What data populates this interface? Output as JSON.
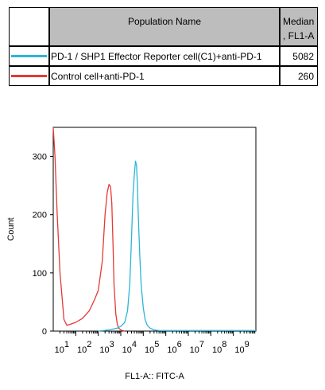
{
  "legend": {
    "header_population": "Population Name",
    "header_median_line1": "Median",
    "header_median_line2": ", FL1-A",
    "rows": [
      {
        "name": "PD-1 / SHP1 Effector Reporter cell(C1)+anti-PD-1",
        "median": "5082",
        "color": "#29b6d8"
      },
      {
        "name": "Control cell+anti-PD-1",
        "median": "260",
        "color": "#e53935"
      }
    ]
  },
  "chart_data": {
    "type": "line",
    "title": "",
    "xlabel": "FL1-A:: FITC-A",
    "ylabel": "Count",
    "xscale": "log",
    "xlim": [
      1,
      1000000000
    ],
    "ylim": [
      0,
      350
    ],
    "yticks": [
      0,
      100,
      200,
      300
    ],
    "xtick_labels": [
      "10",
      "10",
      "10",
      "10",
      "10",
      "10",
      "10",
      "10",
      "10"
    ],
    "xtick_exponents": [
      "1",
      "2",
      "3",
      "4",
      "5",
      "6",
      "7",
      "8",
      "9"
    ],
    "grid": false,
    "series": [
      {
        "name": "Control cell+anti-PD-1",
        "color": "#e53935",
        "x": [
          1,
          1.2,
          1.5,
          2,
          3,
          4,
          6,
          10,
          20,
          40,
          70,
          100,
          150,
          200,
          250,
          300,
          350,
          400,
          450,
          500,
          600,
          700,
          800,
          1000,
          1200,
          1500
        ],
        "y": [
          350,
          300,
          200,
          100,
          20,
          10,
          12,
          15,
          22,
          35,
          55,
          70,
          120,
          200,
          238,
          252,
          248,
          220,
          150,
          80,
          30,
          12,
          5,
          2,
          1,
          0
        ]
      },
      {
        "name": "PD-1 / SHP1 Effector Reporter cell(C1)+anti-PD-1",
        "color": "#29b6d8",
        "x": [
          100,
          300,
          700,
          1000,
          1500,
          2000,
          2500,
          3000,
          3500,
          4000,
          4500,
          5000,
          5500,
          6000,
          7000,
          8000,
          10000,
          12000,
          15000,
          20000,
          30000,
          50000,
          100000,
          1000000,
          1000000000
        ],
        "y": [
          0,
          2,
          5,
          8,
          15,
          35,
          80,
          160,
          235,
          270,
          292,
          285,
          250,
          200,
          130,
          80,
          40,
          20,
          10,
          5,
          2,
          1,
          1,
          1,
          1
        ]
      }
    ]
  }
}
